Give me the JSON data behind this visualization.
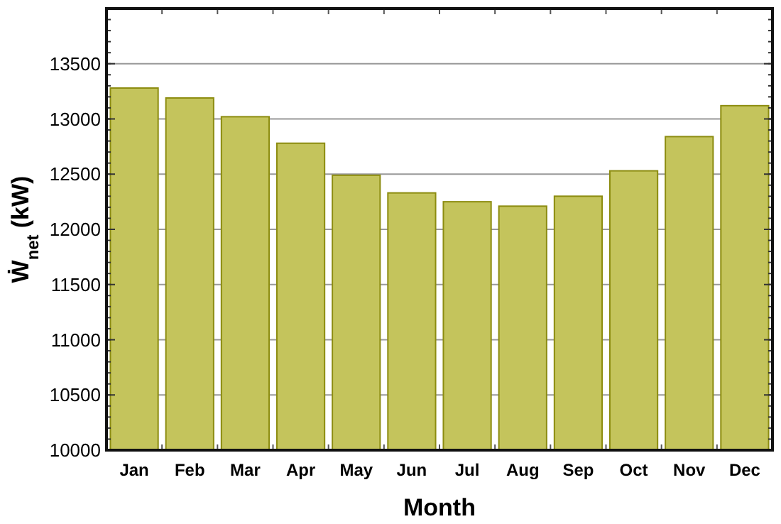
{
  "chart_data": {
    "type": "bar",
    "xlabel": "Month",
    "ylabel": "Ẇ$_{net}$ (kW)",
    "categories": [
      "Jan",
      "Feb",
      "Mar",
      "Apr",
      "May",
      "Jun",
      "Jul",
      "Aug",
      "Sep",
      "Oct",
      "Nov",
      "Dec"
    ],
    "values": [
      13280,
      13190,
      13020,
      12780,
      12490,
      12330,
      12250,
      12210,
      12300,
      12530,
      12840,
      13120
    ],
    "color": "#c4c45c",
    "ylim": [
      10000,
      14000
    ],
    "yticks": [
      10000,
      10500,
      11000,
      11500,
      12000,
      12500,
      13000,
      13500
    ],
    "grid": "y"
  }
}
